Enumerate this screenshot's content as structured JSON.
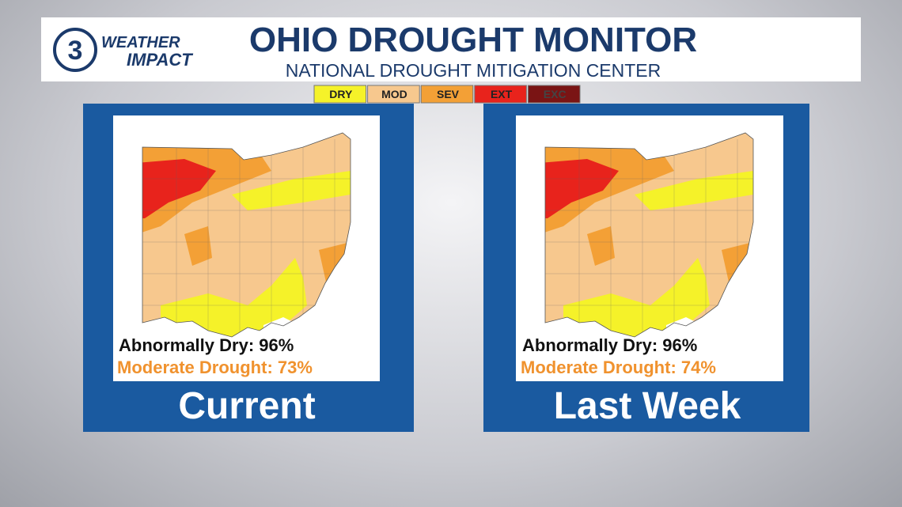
{
  "header": {
    "logo_number": "3",
    "logo_top": "WEATHER",
    "logo_bottom": "IMPACT",
    "title": "OHIO DROUGHT MONITOR",
    "subtitle": "NATIONAL DROUGHT MITIGATION CENTER"
  },
  "legend": {
    "items": [
      {
        "label": "DRY",
        "color": "#f5f229"
      },
      {
        "label": "MOD",
        "color": "#f7c88e"
      },
      {
        "label": "SEV",
        "color": "#f3a036"
      },
      {
        "label": "EXT",
        "color": "#e8231c"
      },
      {
        "label": "EXC",
        "color": "#7a1414"
      }
    ]
  },
  "panels": [
    {
      "dry": "Abnormally Dry: 96%",
      "moderate": "Moderate Drought: 73%",
      "caption": "Current"
    },
    {
      "dry": "Abnormally Dry: 96%",
      "moderate": "Moderate Drought: 74%",
      "caption": "Last Week"
    }
  ]
}
